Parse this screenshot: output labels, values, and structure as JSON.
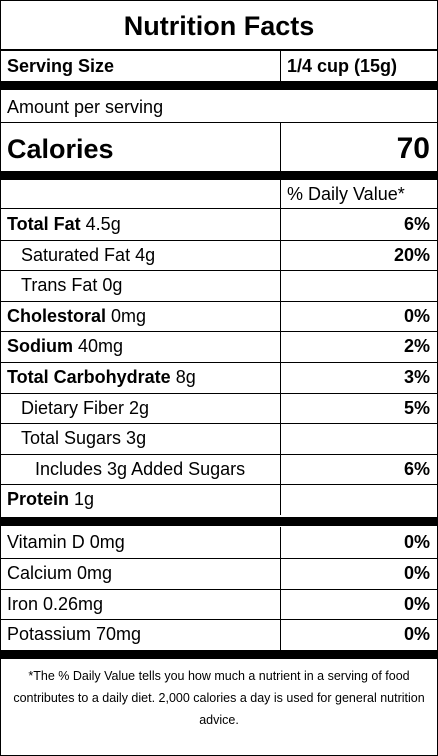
{
  "title": "Nutrition Facts",
  "serving": {
    "label": "Serving Size",
    "value": "1/4 cup (15g)"
  },
  "amount_per_serving": "Amount per serving",
  "calories": {
    "label": "Calories",
    "value": "70"
  },
  "dv_header": "% Daily Value*",
  "nutrients": [
    {
      "bold": "Total Fat",
      "normal": " 4.5g",
      "dv": "6%"
    },
    {
      "bold": "",
      "normal": "Saturated Fat 4g",
      "dv": "20%"
    },
    {
      "bold": "",
      "normal": "Trans Fat 0g",
      "dv": ""
    },
    {
      "bold": "Cholestoral",
      "normal": " 0mg",
      "dv": "0%"
    },
    {
      "bold": "Sodium",
      "normal": " 40mg",
      "dv": "2%"
    },
    {
      "bold": "Total Carbohydrate",
      "normal": " 8g",
      "dv": "3%"
    },
    {
      "bold": "",
      "normal": "Dietary Fiber 2g",
      "dv": "5%"
    },
    {
      "bold": "",
      "normal": "Total Sugars 3g",
      "dv": ""
    },
    {
      "bold": "",
      "normal": "Includes 3g Added Sugars",
      "dv": "6%"
    },
    {
      "bold": "Protein",
      "normal": " 1g",
      "dv": ""
    }
  ],
  "vitamins": [
    {
      "label": "Vitamin D 0mg",
      "dv": "0%"
    },
    {
      "label": "Calcium 0mg",
      "dv": "0%"
    },
    {
      "label": "Iron 0.26mg",
      "dv": "0%"
    },
    {
      "label": "Potassium 70mg",
      "dv": "0%"
    }
  ],
  "footnote": "*The % Daily Value tells you how much a nutrient in a serving of food contributes to a daily diet. 2,000 calories a day is used for general nutrition advice."
}
